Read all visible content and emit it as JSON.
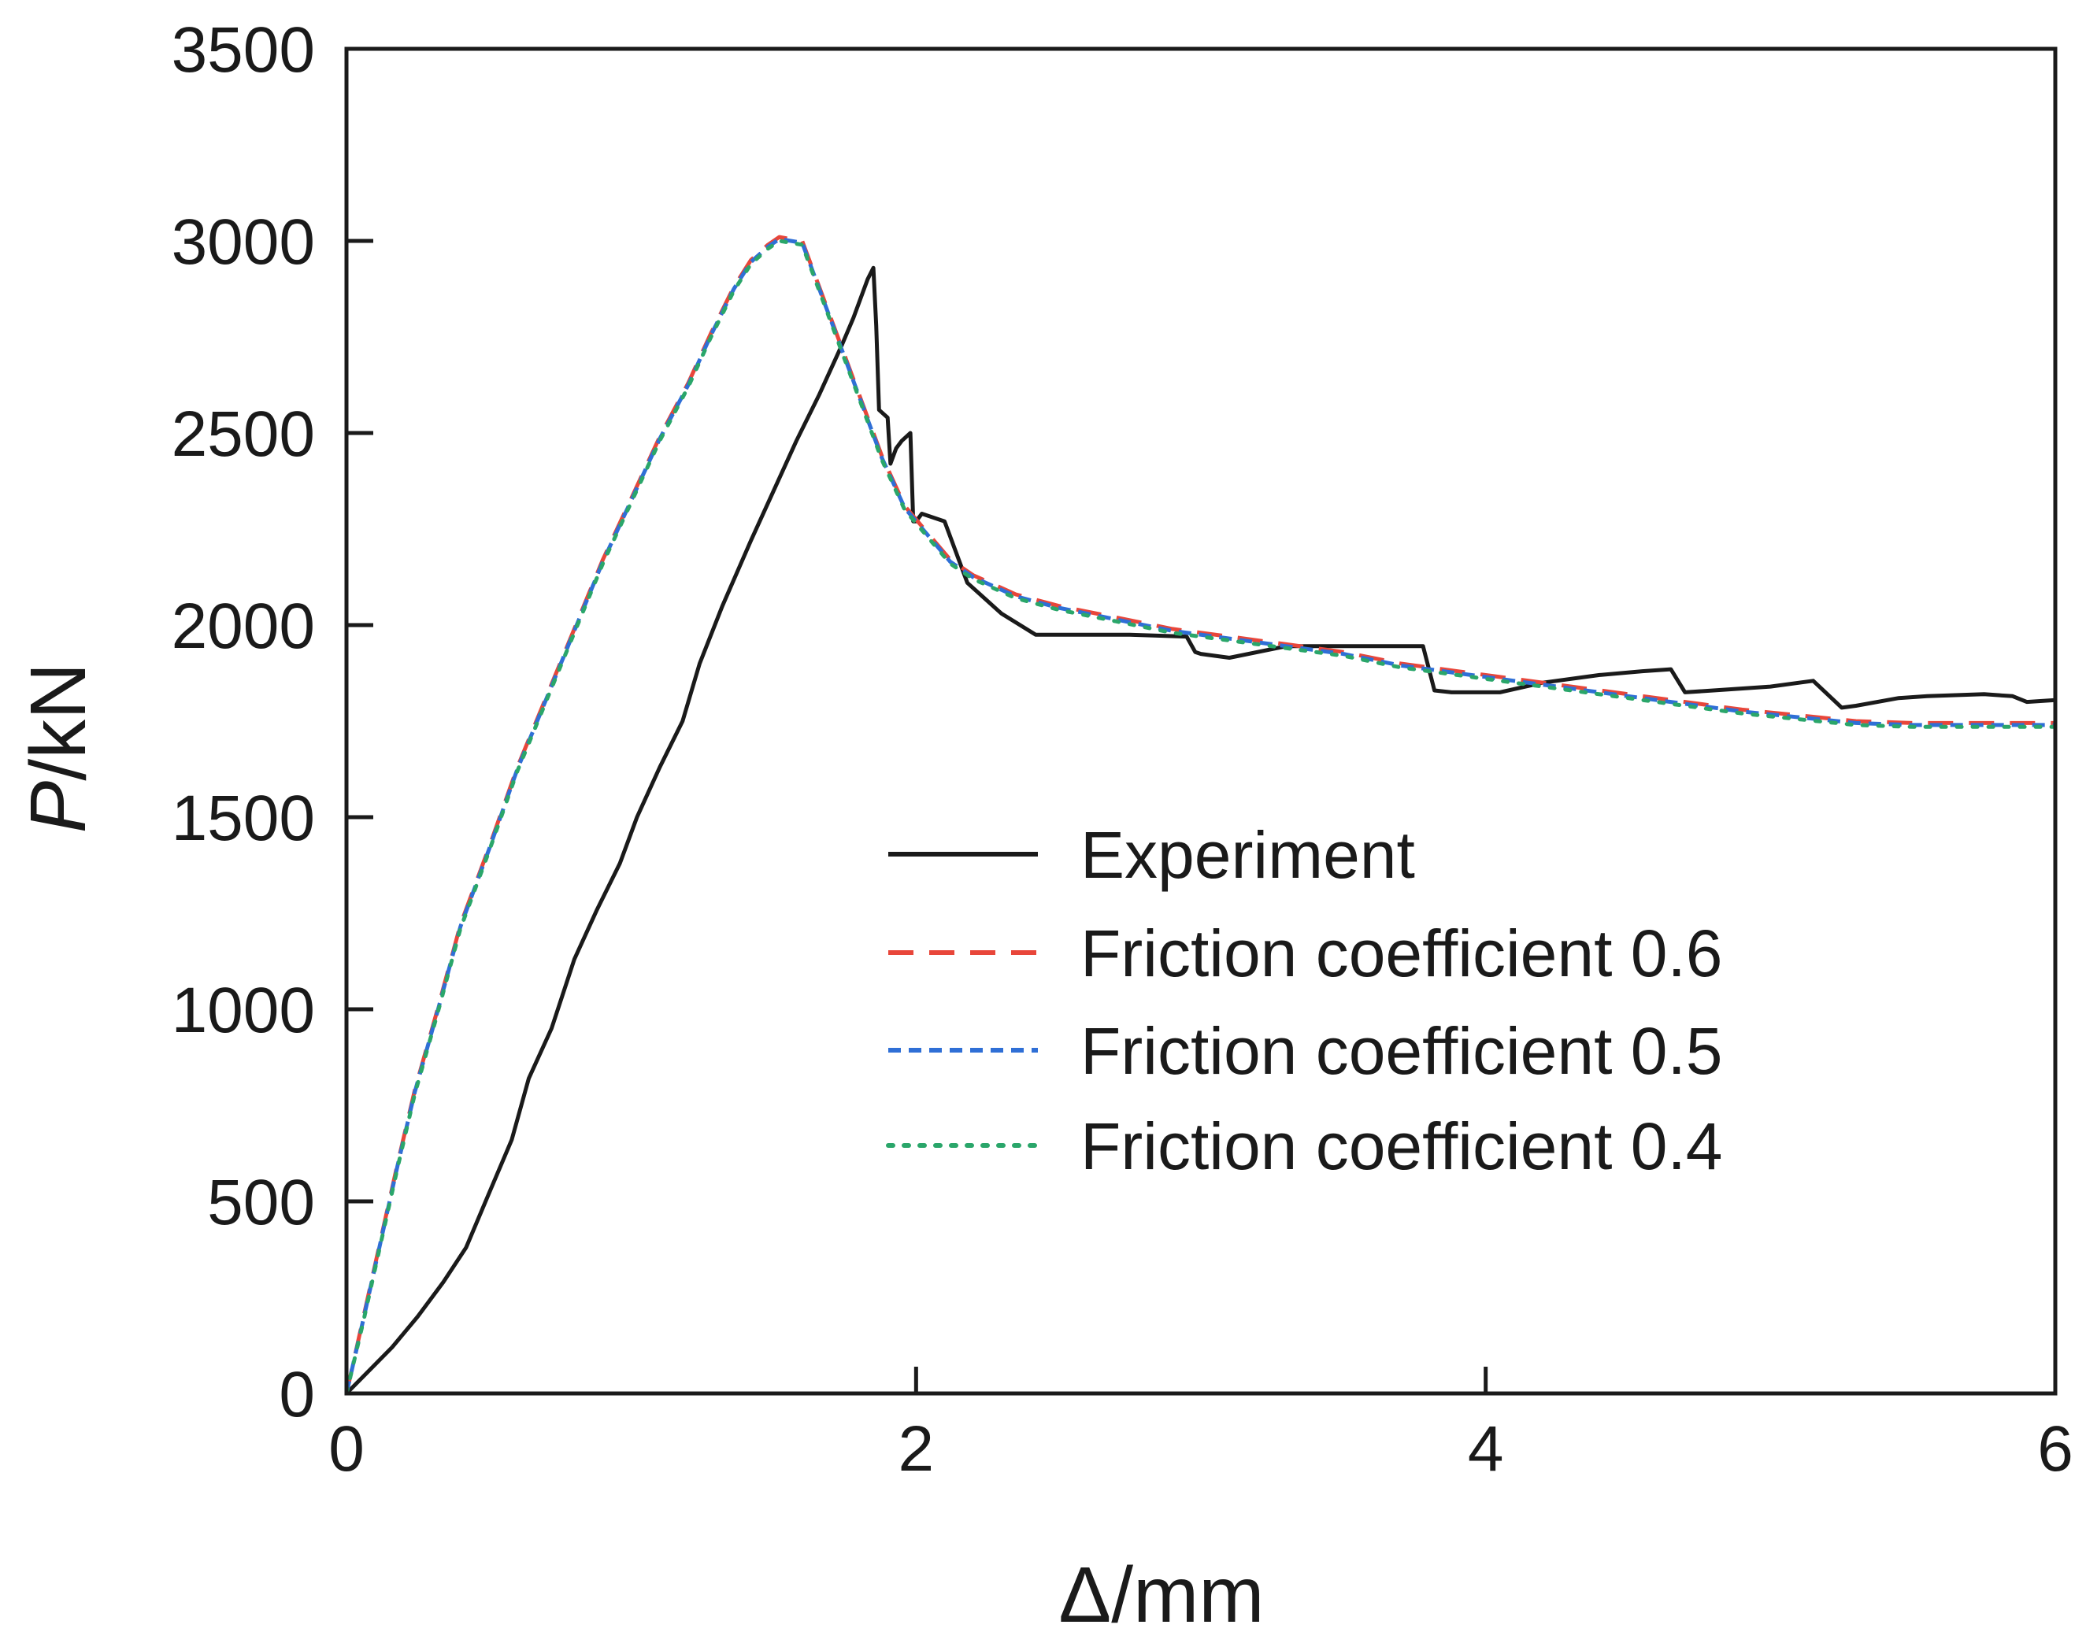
{
  "chart_data": {
    "type": "line",
    "xlabel": "Δ/mm",
    "ylabel": "P/kN",
    "ylabel_italic_part": "P",
    "ylabel_rest": "/kN",
    "xlim": [
      0,
      6
    ],
    "ylim": [
      0,
      3500
    ],
    "xticks": [
      0,
      2,
      4,
      6
    ],
    "yticks": [
      0,
      500,
      1000,
      1500,
      2000,
      2500,
      3000,
      3500
    ],
    "grid": false,
    "legend_position": "center-right",
    "series": [
      {
        "name": "Experiment",
        "color": "#1a1a1a",
        "style": "solid",
        "x": [
          0,
          0.08,
          0.16,
          0.25,
          0.34,
          0.42,
          0.5,
          0.58,
          0.64,
          0.72,
          0.8,
          0.88,
          0.96,
          1.02,
          1.1,
          1.18,
          1.24,
          1.32,
          1.42,
          1.5,
          1.58,
          1.66,
          1.74,
          1.78,
          1.83,
          1.85,
          1.86,
          1.87,
          1.9,
          1.91,
          1.93,
          1.95,
          1.98,
          1.99,
          2.0,
          2.02,
          2.1,
          2.18,
          2.3,
          2.42,
          2.5,
          2.6,
          2.75,
          2.95,
          2.98,
          3.0,
          3.1,
          3.3,
          3.5,
          3.78,
          3.82,
          3.82,
          3.88,
          4.05,
          4.2,
          4.4,
          4.55,
          4.65,
          4.7,
          4.8,
          5.0,
          5.15,
          5.25,
          5.3,
          5.45,
          5.55,
          5.75,
          5.85,
          5.9,
          6.0
        ],
        "y": [
          0,
          60,
          120,
          200,
          290,
          380,
          520,
          660,
          820,
          950,
          1130,
          1260,
          1380,
          1500,
          1630,
          1750,
          1900,
          2050,
          2220,
          2350,
          2480,
          2600,
          2730,
          2800,
          2900,
          2930,
          2780,
          2560,
          2540,
          2420,
          2460,
          2480,
          2500,
          2270,
          2270,
          2290,
          2270,
          2110,
          2030,
          1975,
          1975,
          1975,
          1975,
          1970,
          1930,
          1925,
          1915,
          1945,
          1945,
          1945,
          1830,
          1830,
          1825,
          1825,
          1850,
          1870,
          1880,
          1885,
          1825,
          1830,
          1840,
          1855,
          1785,
          1790,
          1810,
          1815,
          1820,
          1815,
          1800,
          1805
        ]
      },
      {
        "name": "Friction coefficient 0.6",
        "color": "#e8463a",
        "style": "dashed",
        "x": [
          0,
          0.06,
          0.12,
          0.18,
          0.24,
          0.32,
          0.4,
          0.5,
          0.6,
          0.7,
          0.8,
          0.9,
          1.0,
          1.1,
          1.2,
          1.28,
          1.36,
          1.42,
          1.48,
          1.52,
          1.56,
          1.6,
          1.66,
          1.72,
          1.8,
          1.88,
          1.96,
          2.04,
          2.12,
          2.2,
          2.35,
          2.5,
          2.7,
          2.9,
          3.1,
          3.3,
          3.5,
          3.7,
          3.9,
          4.1,
          4.3,
          4.5,
          4.7,
          4.9,
          5.1,
          5.3,
          5.5,
          5.7,
          6.0
        ],
        "y": [
          0,
          200,
          400,
          600,
          790,
          1000,
          1220,
          1420,
          1630,
          1810,
          1990,
          2170,
          2330,
          2490,
          2630,
          2760,
          2880,
          2950,
          2990,
          3010,
          3005,
          3000,
          2880,
          2760,
          2600,
          2440,
          2310,
          2240,
          2170,
          2130,
          2080,
          2050,
          2020,
          1990,
          1970,
          1950,
          1930,
          1900,
          1880,
          1860,
          1840,
          1820,
          1800,
          1780,
          1765,
          1750,
          1745,
          1745,
          1745
        ]
      },
      {
        "name": "Friction coefficient 0.5",
        "color": "#2f6fd6",
        "style": "dashed-short",
        "x": [
          0,
          0.06,
          0.12,
          0.18,
          0.24,
          0.32,
          0.4,
          0.5,
          0.6,
          0.7,
          0.8,
          0.9,
          1.0,
          1.1,
          1.2,
          1.28,
          1.36,
          1.42,
          1.48,
          1.52,
          1.56,
          1.6,
          1.66,
          1.72,
          1.8,
          1.88,
          1.96,
          2.04,
          2.12,
          2.2,
          2.35,
          2.5,
          2.7,
          2.9,
          3.1,
          3.3,
          3.5,
          3.7,
          3.9,
          4.1,
          4.3,
          4.5,
          4.7,
          4.9,
          5.1,
          5.3,
          5.5,
          5.7,
          6.0
        ],
        "y": [
          0,
          195,
          395,
          595,
          785,
          995,
          1215,
          1415,
          1625,
          1805,
          1985,
          2165,
          2325,
          2485,
          2625,
          2755,
          2875,
          2945,
          2985,
          3005,
          3000,
          2995,
          2875,
          2755,
          2595,
          2435,
          2305,
          2235,
          2165,
          2125,
          2075,
          2045,
          2015,
          1985,
          1965,
          1945,
          1925,
          1895,
          1875,
          1855,
          1835,
          1815,
          1795,
          1775,
          1760,
          1745,
          1740,
          1740,
          1740
        ]
      },
      {
        "name": "Friction coefficient 0.4",
        "color": "#2aa66a",
        "style": "dotted",
        "x": [
          0,
          0.06,
          0.12,
          0.18,
          0.24,
          0.32,
          0.4,
          0.5,
          0.6,
          0.7,
          0.8,
          0.9,
          1.0,
          1.1,
          1.2,
          1.28,
          1.36,
          1.42,
          1.48,
          1.52,
          1.56,
          1.6,
          1.66,
          1.72,
          1.8,
          1.88,
          1.96,
          2.04,
          2.12,
          2.2,
          2.35,
          2.5,
          2.7,
          2.9,
          3.1,
          3.3,
          3.5,
          3.7,
          3.9,
          4.1,
          4.3,
          4.5,
          4.7,
          4.9,
          5.1,
          5.3,
          5.5,
          5.7,
          6.0
        ],
        "y": [
          0,
          190,
          390,
          590,
          780,
          990,
          1210,
          1410,
          1620,
          1800,
          1980,
          2160,
          2320,
          2480,
          2620,
          2750,
          2870,
          2940,
          2980,
          3000,
          2995,
          2990,
          2870,
          2750,
          2590,
          2430,
          2300,
          2230,
          2160,
          2120,
          2070,
          2040,
          2010,
          1980,
          1960,
          1940,
          1920,
          1890,
          1870,
          1850,
          1830,
          1810,
          1790,
          1770,
          1755,
          1740,
          1735,
          1735,
          1735
        ]
      }
    ]
  }
}
